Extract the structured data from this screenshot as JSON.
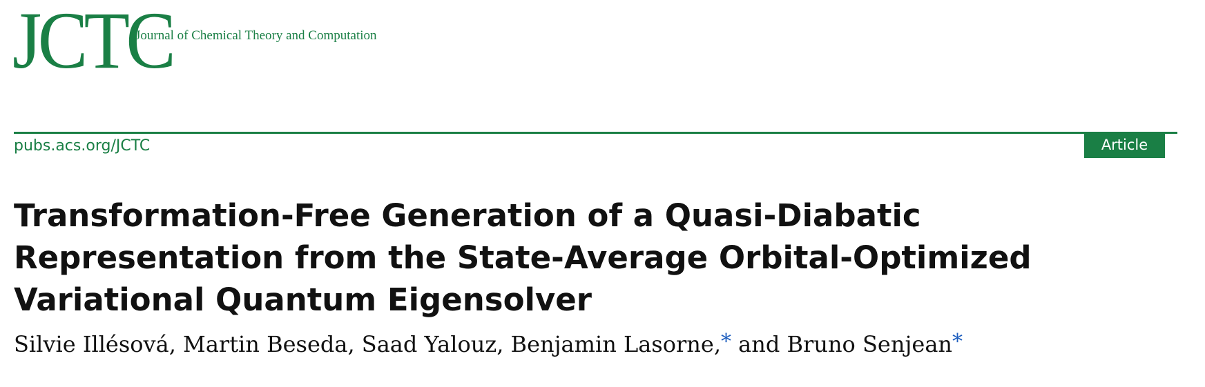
{
  "journal": {
    "logo_text": "JCTC",
    "full_name": "Journal of Chemical Theory and Computation",
    "url": "pubs.acs.org/JCTC"
  },
  "article_type": "Article",
  "title": "Transformation-Free Generation of a Quasi-Diabatic Representation from the State-Average Orbital-Optimized Variational Quantum Eigensolver",
  "authors": {
    "part1": "Silvie Illésová, Martin Beseda, Saad Yalouz, Benjamin Lasorne,",
    "star1": "*",
    "part2": " and Bruno Senjean",
    "star2": "*"
  },
  "colors": {
    "brand_green": "#1a7f45",
    "corresponding_star": "#1f5fbf"
  }
}
